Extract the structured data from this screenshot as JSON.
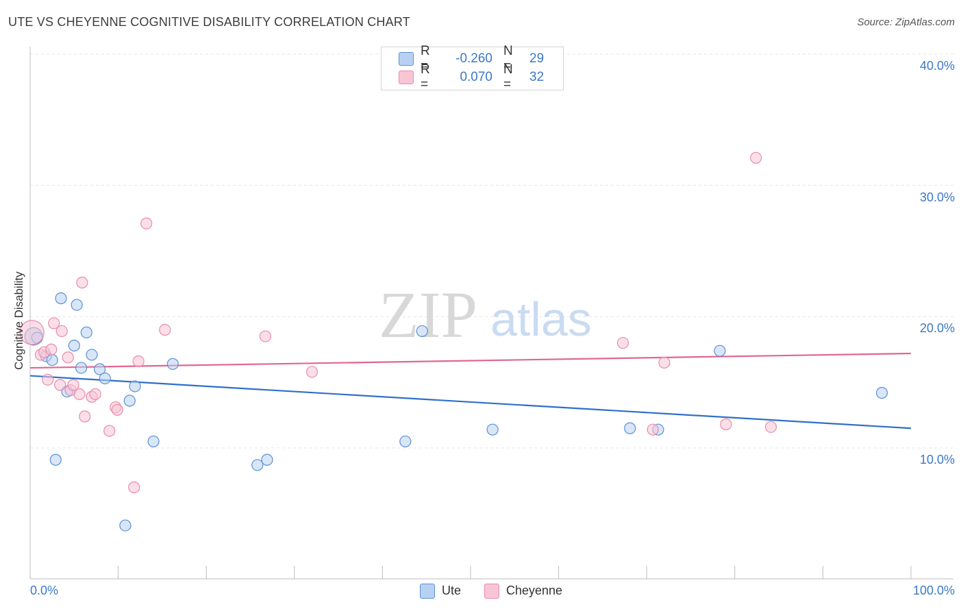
{
  "title": "UTE VS CHEYENNE COGNITIVE DISABILITY CORRELATION CHART",
  "source": "Source: ZipAtlas.com",
  "watermark": {
    "part1": "ZIP",
    "part2": "atlas"
  },
  "legend": {
    "rows": [
      {
        "r_label": "R =",
        "r_value": "-0.260",
        "n_label": "N =",
        "n_value": "29"
      },
      {
        "r_label": "R =",
        "r_value": "0.070",
        "n_label": "N =",
        "n_value": "32"
      }
    ]
  },
  "colors": {
    "ute_fill": "#b8d1f3",
    "ute_stroke": "#5a8fd6",
    "ute_line": "#2e6fc9",
    "cheyenne_fill": "#f8c5d5",
    "cheyenne_stroke": "#e98aaa",
    "cheyenne_line": "#e0668f",
    "axis_text": "#3b78c8",
    "grid": "#e6e6e6"
  },
  "chart_data": {
    "type": "scatter",
    "title": "UTE VS CHEYENNE COGNITIVE DISABILITY CORRELATION CHART",
    "xlabel": "",
    "ylabel": "Cognitive Disability",
    "xlim": [
      0,
      100
    ],
    "ylim": [
      0,
      42
    ],
    "x_tick_labels": [
      {
        "value": 0,
        "label": "0.0%"
      },
      {
        "value": 100,
        "label": "100.0%"
      }
    ],
    "y_tick_labels": [
      {
        "value": 10,
        "label": "10.0%"
      },
      {
        "value": 20,
        "label": "20.0%"
      },
      {
        "value": 30,
        "label": "30.0%"
      },
      {
        "value": 40,
        "label": "40.0%"
      }
    ],
    "series": [
      {
        "name": "Ute",
        "r": -0.26,
        "n": 29,
        "trend": {
          "x": [
            0,
            100
          ],
          "y": [
            15.5,
            11.5
          ]
        },
        "points": [
          {
            "x": 0.4,
            "y": 18.5,
            "s": 1.6
          },
          {
            "x": 0.8,
            "y": 18.4,
            "s": 1
          },
          {
            "x": 1.8,
            "y": 17.0,
            "s": 1
          },
          {
            "x": 2.5,
            "y": 16.7,
            "s": 1
          },
          {
            "x": 2.9,
            "y": 9.1,
            "s": 1
          },
          {
            "x": 3.5,
            "y": 21.4,
            "s": 1
          },
          {
            "x": 4.2,
            "y": 14.3,
            "s": 1
          },
          {
            "x": 5.0,
            "y": 17.8,
            "s": 1
          },
          {
            "x": 5.3,
            "y": 20.9,
            "s": 1
          },
          {
            "x": 5.8,
            "y": 16.1,
            "s": 1
          },
          {
            "x": 6.4,
            "y": 18.8,
            "s": 1
          },
          {
            "x": 7.0,
            "y": 17.1,
            "s": 1
          },
          {
            "x": 7.9,
            "y": 16.0,
            "s": 1
          },
          {
            "x": 8.5,
            "y": 15.3,
            "s": 1
          },
          {
            "x": 10.8,
            "y": 4.1,
            "s": 1
          },
          {
            "x": 11.3,
            "y": 13.6,
            "s": 1
          },
          {
            "x": 11.9,
            "y": 14.7,
            "s": 1
          },
          {
            "x": 14.0,
            "y": 10.5,
            "s": 1
          },
          {
            "x": 16.2,
            "y": 16.4,
            "s": 1
          },
          {
            "x": 25.8,
            "y": 8.7,
            "s": 1
          },
          {
            "x": 26.9,
            "y": 9.1,
            "s": 1
          },
          {
            "x": 42.6,
            "y": 10.5,
            "s": 1
          },
          {
            "x": 44.5,
            "y": 18.9,
            "s": 1
          },
          {
            "x": 52.5,
            "y": 11.4,
            "s": 1
          },
          {
            "x": 68.1,
            "y": 11.5,
            "s": 1
          },
          {
            "x": 71.3,
            "y": 11.4,
            "s": 1
          },
          {
            "x": 78.3,
            "y": 17.4,
            "s": 1
          },
          {
            "x": 96.7,
            "y": 14.2,
            "s": 1
          }
        ]
      },
      {
        "name": "Cheyenne",
        "r": 0.07,
        "n": 32,
        "trend": {
          "x": [
            0,
            100
          ],
          "y": [
            16.1,
            17.2
          ]
        },
        "points": [
          {
            "x": 0.2,
            "y": 18.8,
            "s": 2.2
          },
          {
            "x": 1.2,
            "y": 17.1,
            "s": 1
          },
          {
            "x": 1.6,
            "y": 17.3,
            "s": 1
          },
          {
            "x": 2.0,
            "y": 15.2,
            "s": 1
          },
          {
            "x": 2.4,
            "y": 17.5,
            "s": 1
          },
          {
            "x": 2.7,
            "y": 19.5,
            "s": 1
          },
          {
            "x": 3.4,
            "y": 14.8,
            "s": 1
          },
          {
            "x": 3.6,
            "y": 18.9,
            "s": 1
          },
          {
            "x": 4.3,
            "y": 16.9,
            "s": 1
          },
          {
            "x": 4.6,
            "y": 14.4,
            "s": 1
          },
          {
            "x": 4.9,
            "y": 14.8,
            "s": 1
          },
          {
            "x": 5.6,
            "y": 14.1,
            "s": 1
          },
          {
            "x": 5.9,
            "y": 22.6,
            "s": 1
          },
          {
            "x": 6.2,
            "y": 12.4,
            "s": 1
          },
          {
            "x": 7.0,
            "y": 13.9,
            "s": 1
          },
          {
            "x": 7.4,
            "y": 14.1,
            "s": 1
          },
          {
            "x": 9.0,
            "y": 11.3,
            "s": 1
          },
          {
            "x": 9.7,
            "y": 13.1,
            "s": 1
          },
          {
            "x": 9.9,
            "y": 12.9,
            "s": 1
          },
          {
            "x": 11.8,
            "y": 7.0,
            "s": 1
          },
          {
            "x": 12.3,
            "y": 16.6,
            "s": 1
          },
          {
            "x": 13.2,
            "y": 27.1,
            "s": 1
          },
          {
            "x": 15.3,
            "y": 19.0,
            "s": 1
          },
          {
            "x": 26.7,
            "y": 18.5,
            "s": 1
          },
          {
            "x": 32.0,
            "y": 15.8,
            "s": 1
          },
          {
            "x": 67.3,
            "y": 18.0,
            "s": 1
          },
          {
            "x": 70.7,
            "y": 11.4,
            "s": 1
          },
          {
            "x": 72.0,
            "y": 16.5,
            "s": 1
          },
          {
            "x": 79.0,
            "y": 11.8,
            "s": 1
          },
          {
            "x": 82.4,
            "y": 32.1,
            "s": 1
          },
          {
            "x": 84.1,
            "y": 11.6,
            "s": 1
          }
        ]
      }
    ]
  }
}
